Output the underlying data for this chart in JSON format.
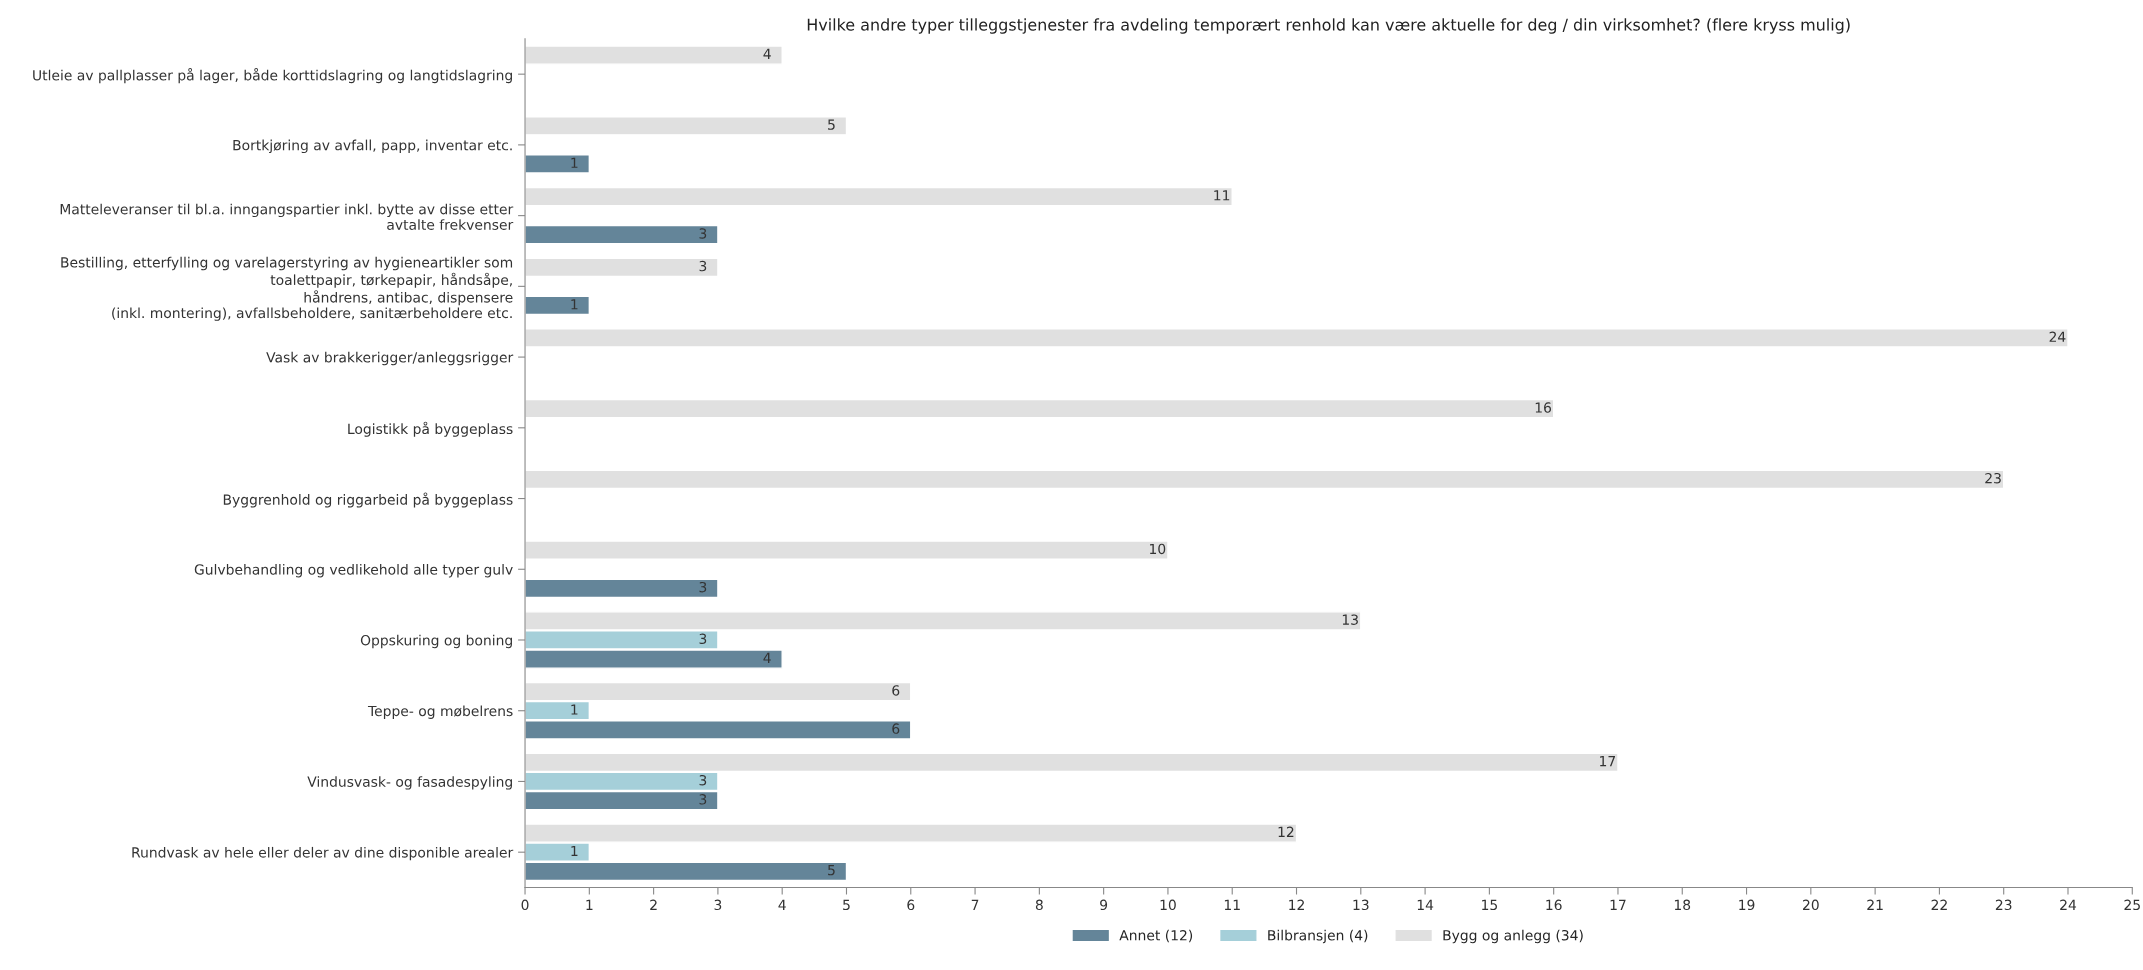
{
  "chart_data": {
    "type": "bar",
    "orientation": "horizontal",
    "title": "Hvilke andre typer tilleggstjenester fra avdeling temporært renhold kan være aktuelle for deg / din virksomhet? (flere kryss mulig)",
    "categories": [
      "Utleie av pallplasser på lager, både korttidslagring og langtidslagring",
      "Bortkjøring av avfall, papp, inventar etc.",
      "Matteleveranser til bl.a. inngangspartier inkl. bytte av disse etter\navtalte frekvenser",
      "Bestilling, etterfylling og varelagerstyring av hygieneartikler som\ntoalettpapir, tørkepapir, håndsåpe,\nhåndrens, antibac, dispensere\n(inkl. montering), avfallsbeholdere, sanitærbeholdere etc.",
      "Vask av brakkerigger/anleggsrigger",
      "Logistikk på byggeplass",
      "Byggrenhold og riggarbeid på byggeplass",
      "Gulvbehandling og vedlikehold alle typer gulv",
      "Oppskuring og boning",
      "Teppe- og møbelrens",
      "Vindusvask- og fasadespyling",
      "Rundvask av hele eller deler av dine disponible arealer"
    ],
    "series": [
      {
        "name": "Annet (12)",
        "color": "#648599",
        "values": [
          null,
          1,
          3,
          1,
          null,
          null,
          null,
          3,
          4,
          6,
          3,
          5
        ]
      },
      {
        "name": "Bilbransjen (4)",
        "color": "#a5cfd9",
        "values": [
          null,
          null,
          null,
          null,
          null,
          null,
          null,
          null,
          3,
          1,
          3,
          1
        ]
      },
      {
        "name": "Bygg og anlegg (34)",
        "color": "#e0e0e0",
        "values": [
          4,
          5,
          11,
          3,
          24,
          16,
          23,
          10,
          13,
          6,
          17,
          12
        ]
      }
    ],
    "xlim": [
      0,
      25
    ],
    "xticks": [
      0,
      1,
      2,
      3,
      4,
      5,
      6,
      7,
      8,
      9,
      10,
      11,
      12,
      13,
      14,
      15,
      16,
      17,
      18,
      19,
      20,
      21,
      22,
      23,
      24,
      25
    ],
    "data_labels": true,
    "legend": "bottom",
    "grid": false
  }
}
